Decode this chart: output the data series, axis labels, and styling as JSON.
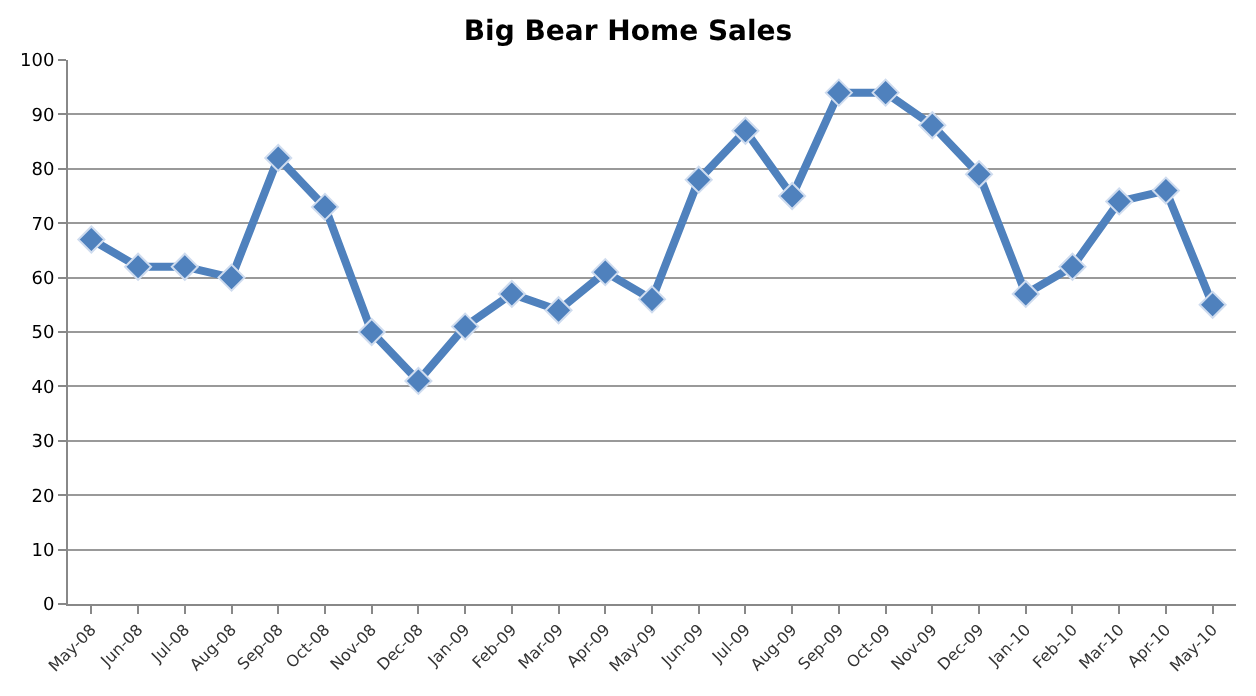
{
  "chart_data": {
    "type": "line",
    "title": "Big Bear Home Sales",
    "categories": [
      "May-08",
      "Jun-08",
      "Jul-08",
      "Aug-08",
      "Sep-08",
      "Oct-08",
      "Nov-08",
      "Dec-08",
      "Jan-09",
      "Feb-09",
      "Mar-09",
      "Apr-09",
      "May-09",
      "Jun-09",
      "Jul-09",
      "Aug-09",
      "Sep-09",
      "Oct-09",
      "Nov-09",
      "Dec-09",
      "Jan-10",
      "Feb-10",
      "Mar-10",
      "Apr-10",
      "May-10"
    ],
    "series": [
      {
        "color": "#4f81bd",
        "values": [
          67,
          62,
          62,
          60,
          82,
          73,
          50,
          41,
          51,
          57,
          54,
          61,
          56,
          78,
          87,
          75,
          94,
          94,
          88,
          79,
          57,
          62,
          74,
          76,
          55
        ]
      }
    ],
    "ylim": [
      0,
      100
    ],
    "yticks": [
      0,
      10,
      20,
      30,
      40,
      50,
      60,
      70,
      80,
      90,
      100
    ],
    "grid": "y",
    "marker": "diamond",
    "line_style": "solid"
  }
}
